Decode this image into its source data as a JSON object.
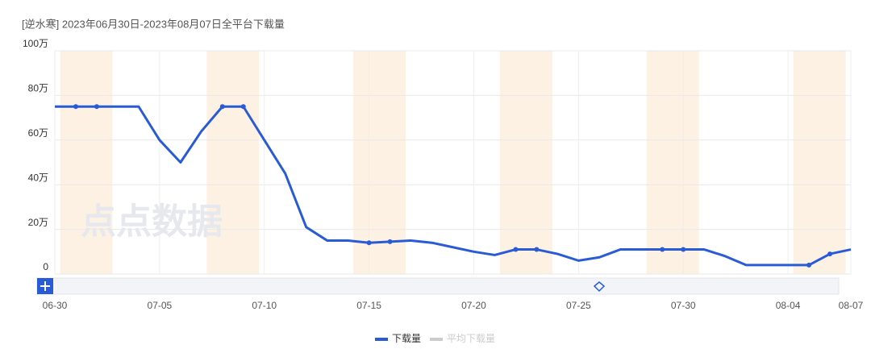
{
  "chart_data": {
    "type": "line",
    "title": "[逆水寒]  2023年06月30日-2023年08月07日全平台下载量",
    "watermark": "点点数据",
    "categories": [
      "06-30",
      "07-01",
      "07-02",
      "07-03",
      "07-04",
      "07-05",
      "07-06",
      "07-07",
      "07-08",
      "07-09",
      "07-10",
      "07-11",
      "07-12",
      "07-13",
      "07-14",
      "07-15",
      "07-16",
      "07-17",
      "07-18",
      "07-19",
      "07-20",
      "07-21",
      "07-22",
      "07-23",
      "07-24",
      "07-25",
      "07-26",
      "07-27",
      "07-28",
      "07-29",
      "07-30",
      "07-31",
      "08-01",
      "08-02",
      "08-03",
      "08-04",
      "08-05",
      "08-06",
      "08-07"
    ],
    "xticks": [
      "06-30",
      "07-05",
      "07-10",
      "07-15",
      "07-20",
      "07-25",
      "07-30",
      "08-04",
      "08-07"
    ],
    "highlighted_categories": [
      [
        "07-01",
        "07-02"
      ],
      [
        "07-08",
        "07-09"
      ],
      [
        "07-15",
        "07-16"
      ],
      [
        "07-22",
        "07-23"
      ],
      [
        "07-29",
        "07-30"
      ],
      [
        "08-05",
        "08-06"
      ]
    ],
    "series": [
      {
        "name": "下载量",
        "color": "#2a5bd7",
        "values": [
          75,
          75,
          75,
          75,
          75,
          60,
          50,
          64,
          75,
          75,
          60,
          45,
          21,
          15,
          15,
          14,
          14.5,
          15,
          14,
          12,
          10,
          8.5,
          11,
          11,
          9,
          6,
          7.5,
          11,
          11,
          11,
          11,
          11,
          8,
          4,
          4,
          4,
          4,
          9,
          11
        ]
      }
    ],
    "inactive_legend": {
      "name": "平均下载量",
      "color": "#cccccc"
    },
    "ylim": [
      0,
      100
    ],
    "yticks": [
      0,
      {
        "value": 20,
        "label": "20万"
      },
      {
        "value": 40,
        "label": "40万"
      },
      {
        "value": 60,
        "label": "60万"
      },
      {
        "value": 80,
        "label": "80万"
      },
      {
        "value": 100,
        "label": "100万"
      }
    ],
    "grid": true
  }
}
